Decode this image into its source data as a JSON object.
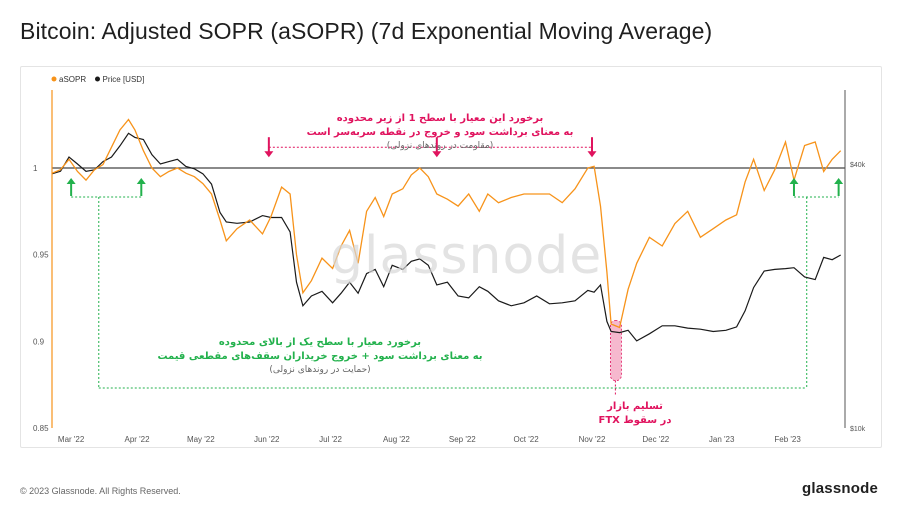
{
  "title": "Bitcoin: Adjusted SOPR (aSOPR) (7d Exponential Moving Average)",
  "footer": {
    "copyright": "© 2023 Glassnode. All Rights Reserved.",
    "logo": "glassnode"
  },
  "watermark": "glassnode",
  "colors": {
    "asopr": "#f7931a",
    "price": "#1a1a1a",
    "red_annotation": "#e0135e",
    "green_annotation": "#22b14c",
    "baseline": "#444444"
  },
  "annotations": {
    "resistance": {
      "line1": "برخورد این معیار با سطح 1 از زیر محدوده",
      "line2": "به معنای برداشت سود و خروج در نقطه سربه‌سر است",
      "line3": "(مقاومت در روندهای نزولی)"
    },
    "support": {
      "line1": "برخورد معیار با سطح یک از بالای محدوده",
      "line2": "به معنای برداشت سود + خروج خریداران سقف‌های مقطعی قیمت",
      "line3": "(حمایت در روندهای نزولی)"
    },
    "ftx": {
      "line1": "تسلیم بازار",
      "line2": "در سقوط FTX"
    }
  },
  "chart_data": {
    "type": "line",
    "title": "Bitcoin: Adjusted SOPR (aSOPR) (7d Exponential Moving Average)",
    "legend": [
      "aSOPR",
      "Price [USD]"
    ],
    "legend_position": "top-left",
    "grid": false,
    "x_ticks": [
      "Mar '22",
      "Apr '22",
      "May '22",
      "Jun '22",
      "Jul '22",
      "Aug '22",
      "Sep '22",
      "Oct '22",
      "Nov '22",
      "Dec '22",
      "Jan '23",
      "Feb '23"
    ],
    "y_left": {
      "ticks": [
        "0.85",
        "0.9",
        "0.95",
        "1"
      ],
      "ylim": [
        0.85,
        1.045
      ]
    },
    "y_right": {
      "ticks": [
        "$10k",
        "$40k"
      ],
      "scale": "log"
    },
    "reference_line": 1,
    "series": [
      {
        "name": "aSOPR",
        "dates": [
          "2022-02-20",
          "2022-02-24",
          "2022-02-28",
          "2022-03-04",
          "2022-03-08",
          "2022-03-12",
          "2022-03-16",
          "2022-03-20",
          "2022-03-24",
          "2022-03-28",
          "2022-03-31",
          "2022-04-04",
          "2022-04-08",
          "2022-04-12",
          "2022-04-16",
          "2022-04-20",
          "2022-04-24",
          "2022-04-28",
          "2022-05-02",
          "2022-05-06",
          "2022-05-10",
          "2022-05-13",
          "2022-05-18",
          "2022-05-24",
          "2022-05-30",
          "2022-06-03",
          "2022-06-08",
          "2022-06-12",
          "2022-06-15",
          "2022-06-18",
          "2022-06-22",
          "2022-06-27",
          "2022-07-02",
          "2022-07-06",
          "2022-07-10",
          "2022-07-14",
          "2022-07-18",
          "2022-07-22",
          "2022-07-26",
          "2022-07-30",
          "2022-08-04",
          "2022-08-08",
          "2022-08-12",
          "2022-08-16",
          "2022-08-20",
          "2022-08-25",
          "2022-08-30",
          "2022-09-04",
          "2022-09-09",
          "2022-09-13",
          "2022-09-18",
          "2022-09-24",
          "2022-09-30",
          "2022-10-06",
          "2022-10-12",
          "2022-10-18",
          "2022-10-24",
          "2022-10-30",
          "2022-11-02",
          "2022-11-05",
          "2022-11-08",
          "2022-11-10",
          "2022-11-14",
          "2022-11-18",
          "2022-11-22",
          "2022-11-28",
          "2022-12-04",
          "2022-12-10",
          "2022-12-16",
          "2022-12-22",
          "2022-12-28",
          "2023-01-03",
          "2023-01-08",
          "2023-01-12",
          "2023-01-16",
          "2023-01-21",
          "2023-01-26",
          "2023-01-31",
          "2023-02-04",
          "2023-02-09",
          "2023-02-14",
          "2023-02-18",
          "2023-02-22",
          "2023-02-26"
        ],
        "values": [
          0.997,
          0.999,
          1.005,
          0.998,
          0.993,
          0.999,
          1.002,
          1.012,
          1.022,
          1.028,
          1.022,
          1.01,
          1.0,
          0.995,
          0.998,
          1.0,
          0.997,
          0.995,
          0.991,
          0.985,
          0.97,
          0.958,
          0.965,
          0.97,
          0.962,
          0.972,
          0.989,
          0.985,
          0.95,
          0.928,
          0.935,
          0.948,
          0.942,
          0.955,
          0.964,
          0.945,
          0.975,
          0.983,
          0.972,
          0.985,
          0.988,
          0.996,
          1.0,
          0.995,
          0.985,
          0.982,
          0.978,
          0.985,
          0.975,
          0.985,
          0.98,
          0.983,
          0.985,
          0.985,
          0.985,
          0.98,
          0.988,
          1.0,
          1.001,
          0.978,
          0.94,
          0.91,
          0.908,
          0.93,
          0.945,
          0.96,
          0.955,
          0.968,
          0.975,
          0.96,
          0.965,
          0.97,
          0.973,
          0.992,
          1.005,
          0.987,
          0.999,
          1.015,
          0.993,
          1.013,
          1.015,
          0.998,
          1.005,
          1.01
        ]
      },
      {
        "name": "Price [USD]",
        "dates": [
          "2022-02-20",
          "2022-02-24",
          "2022-02-28",
          "2022-03-04",
          "2022-03-08",
          "2022-03-12",
          "2022-03-16",
          "2022-03-20",
          "2022-03-24",
          "2022-03-28",
          "2022-03-31",
          "2022-04-04",
          "2022-04-08",
          "2022-04-12",
          "2022-04-16",
          "2022-04-20",
          "2022-04-24",
          "2022-04-28",
          "2022-05-02",
          "2022-05-06",
          "2022-05-10",
          "2022-05-13",
          "2022-05-18",
          "2022-05-24",
          "2022-05-30",
          "2022-06-03",
          "2022-06-08",
          "2022-06-12",
          "2022-06-15",
          "2022-06-18",
          "2022-06-22",
          "2022-06-27",
          "2022-07-02",
          "2022-07-06",
          "2022-07-10",
          "2022-07-14",
          "2022-07-18",
          "2022-07-22",
          "2022-07-26",
          "2022-07-30",
          "2022-08-04",
          "2022-08-08",
          "2022-08-12",
          "2022-08-16",
          "2022-08-20",
          "2022-08-25",
          "2022-08-30",
          "2022-09-04",
          "2022-09-09",
          "2022-09-13",
          "2022-09-18",
          "2022-09-24",
          "2022-09-30",
          "2022-10-06",
          "2022-10-12",
          "2022-10-18",
          "2022-10-24",
          "2022-10-30",
          "2022-11-02",
          "2022-11-05",
          "2022-11-08",
          "2022-11-10",
          "2022-11-14",
          "2022-11-18",
          "2022-11-22",
          "2022-11-28",
          "2022-12-04",
          "2022-12-10",
          "2022-12-16",
          "2022-12-22",
          "2022-12-28",
          "2023-01-03",
          "2023-01-08",
          "2023-01-12",
          "2023-01-16",
          "2023-01-21",
          "2023-01-26",
          "2023-01-31",
          "2023-02-04",
          "2023-02-09",
          "2023-02-14",
          "2023-02-18",
          "2023-02-22",
          "2023-02-26"
        ],
        "values": [
          38000,
          38500,
          41500,
          40000,
          38500,
          38800,
          40500,
          41500,
          44000,
          47000,
          46000,
          45500,
          42000,
          40000,
          40500,
          41000,
          39500,
          39000,
          38000,
          36000,
          31000,
          29500,
          29300,
          29500,
          30500,
          30200,
          30200,
          28000,
          21500,
          19000,
          20000,
          20500,
          19300,
          20300,
          21500,
          20300,
          22500,
          23000,
          21000,
          23500,
          23000,
          24000,
          24300,
          23500,
          21200,
          21500,
          20000,
          19800,
          21000,
          20500,
          19500,
          19000,
          19300,
          20000,
          19200,
          19300,
          19500,
          20600,
          20400,
          21200,
          17500,
          16600,
          16500,
          16700,
          15800,
          16400,
          17100,
          17100,
          16900,
          16800,
          16600,
          16700,
          17000,
          18500,
          20900,
          22800,
          23000,
          23100,
          23200,
          22100,
          21800,
          24500,
          24200,
          24800
        ]
      }
    ]
  }
}
